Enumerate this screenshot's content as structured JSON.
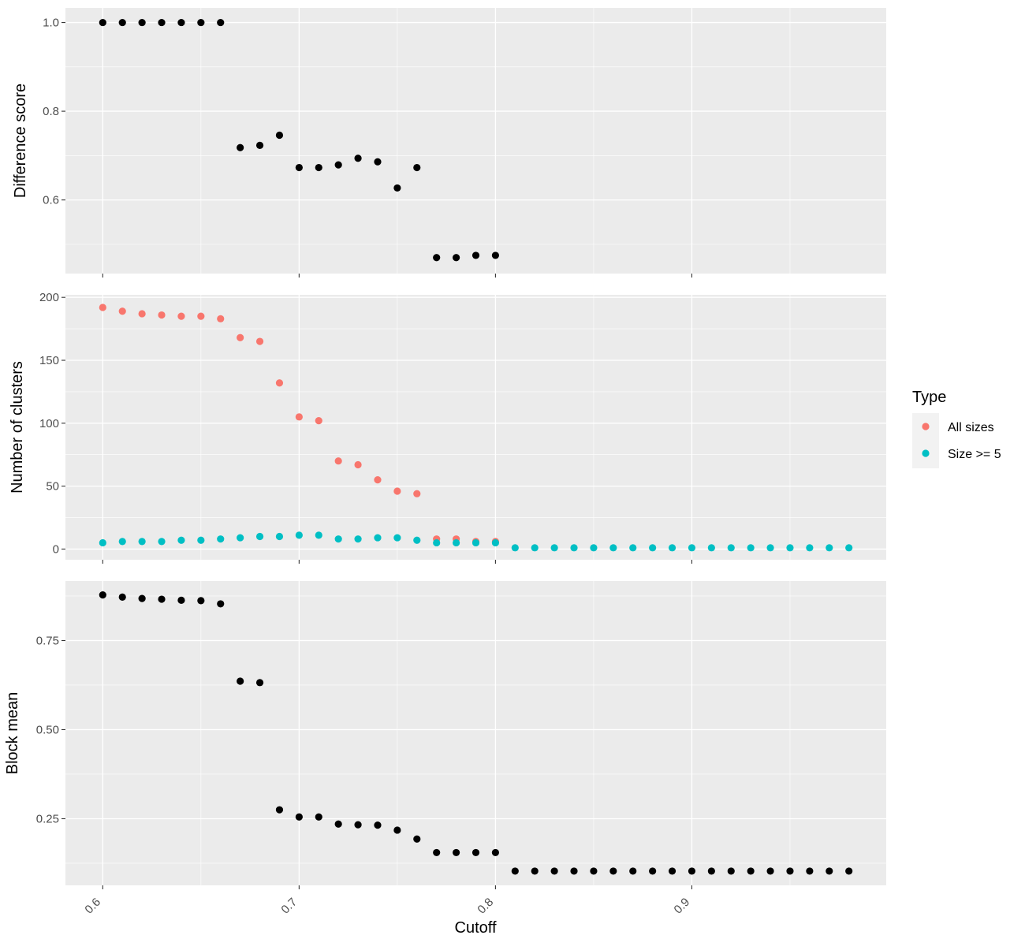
{
  "chart_data": [
    {
      "type": "scatter",
      "panel": "top",
      "ylabel": "Difference score",
      "xlabel": "",
      "xlim": [
        0.581,
        0.999
      ],
      "ylim": [
        0.434,
        1.033
      ],
      "y_ticks": [
        0.6,
        0.8,
        1.0
      ],
      "y_tick_labels": [
        "0.6",
        "0.8",
        "1.0"
      ],
      "x_ticks": [
        0.6,
        0.7,
        0.8,
        0.9
      ],
      "grid": true,
      "series": [
        {
          "color": "#000000",
          "x": [
            0.6,
            0.61,
            0.62,
            0.63,
            0.64,
            0.65,
            0.66,
            0.67,
            0.68,
            0.69,
            0.7,
            0.71,
            0.72,
            0.73,
            0.74,
            0.75,
            0.76,
            0.77,
            0.78,
            0.79,
            0.8
          ],
          "y": [
            1.0,
            1.0,
            1.0,
            1.0,
            1.0,
            1.0,
            1.0,
            0.718,
            0.723,
            0.746,
            0.673,
            0.673,
            0.679,
            0.694,
            0.686,
            0.627,
            0.673,
            0.47,
            0.47,
            0.475,
            0.475
          ]
        }
      ]
    },
    {
      "type": "scatter",
      "panel": "middle",
      "ylabel": "Number of clusters",
      "xlabel": "",
      "xlim": [
        0.581,
        0.999
      ],
      "ylim": [
        -8.5,
        202
      ],
      "y_ticks": [
        0,
        50,
        100,
        150,
        200
      ],
      "y_tick_labels": [
        "0",
        "50",
        "100",
        "150",
        "200"
      ],
      "x_ticks": [
        0.6,
        0.7,
        0.8,
        0.9
      ],
      "grid": true,
      "series": [
        {
          "name": "All sizes",
          "color": "#F8766D",
          "x": [
            0.6,
            0.61,
            0.62,
            0.63,
            0.64,
            0.65,
            0.66,
            0.67,
            0.68,
            0.69,
            0.7,
            0.71,
            0.72,
            0.73,
            0.74,
            0.75,
            0.76,
            0.77,
            0.78,
            0.79,
            0.8
          ],
          "y": [
            192,
            189,
            187,
            186,
            185,
            185,
            183,
            168,
            165,
            132,
            105,
            102,
            70,
            67,
            55,
            46,
            44,
            8,
            8,
            6,
            6
          ]
        },
        {
          "name": "Size >= 5",
          "color": "#00BFC4",
          "x": [
            0.6,
            0.61,
            0.62,
            0.63,
            0.64,
            0.65,
            0.66,
            0.67,
            0.68,
            0.69,
            0.7,
            0.71,
            0.72,
            0.73,
            0.74,
            0.75,
            0.76,
            0.77,
            0.78,
            0.79,
            0.8,
            0.81,
            0.82,
            0.83,
            0.84,
            0.85,
            0.86,
            0.87,
            0.88,
            0.89,
            0.9,
            0.91,
            0.92,
            0.93,
            0.94,
            0.95,
            0.96,
            0.97,
            0.98
          ],
          "y": [
            5,
            6,
            6,
            6,
            7,
            7,
            8,
            9,
            10,
            10,
            11,
            11,
            8,
            8,
            9,
            9,
            7,
            5,
            5,
            5,
            5,
            1,
            1,
            1,
            1,
            1,
            1,
            1,
            1,
            1,
            1,
            1,
            1,
            1,
            1,
            1,
            1,
            1,
            1
          ]
        }
      ]
    },
    {
      "type": "scatter",
      "panel": "bottom",
      "ylabel": "Block mean",
      "xlabel": "Cutoff",
      "xlim": [
        0.581,
        0.999
      ],
      "ylim": [
        0.063,
        0.917
      ],
      "y_ticks": [
        0.25,
        0.5,
        0.75
      ],
      "y_tick_labels": [
        "0.25",
        "0.50",
        "0.75"
      ],
      "x_ticks": [
        0.6,
        0.7,
        0.8,
        0.9
      ],
      "x_tick_labels": [
        "0.6",
        "0.7",
        "0.8",
        "0.9"
      ],
      "grid": true,
      "series": [
        {
          "color": "#000000",
          "x": [
            0.6,
            0.61,
            0.62,
            0.63,
            0.64,
            0.65,
            0.66,
            0.67,
            0.68,
            0.69,
            0.7,
            0.71,
            0.72,
            0.73,
            0.74,
            0.75,
            0.76,
            0.77,
            0.78,
            0.79,
            0.8,
            0.81,
            0.82,
            0.83,
            0.84,
            0.85,
            0.86,
            0.87,
            0.88,
            0.89,
            0.9,
            0.91,
            0.92,
            0.93,
            0.94,
            0.95,
            0.96,
            0.97,
            0.98
          ],
          "y": [
            0.878,
            0.872,
            0.868,
            0.866,
            0.863,
            0.862,
            0.853,
            0.636,
            0.632,
            0.275,
            0.255,
            0.255,
            0.235,
            0.233,
            0.232,
            0.218,
            0.193,
            0.155,
            0.155,
            0.155,
            0.155,
            0.103,
            0.103,
            0.103,
            0.103,
            0.103,
            0.103,
            0.103,
            0.103,
            0.103,
            0.103,
            0.103,
            0.103,
            0.103,
            0.103,
            0.103,
            0.103,
            0.103,
            0.103
          ]
        }
      ]
    }
  ],
  "legend": {
    "title": "Type",
    "placement": "right",
    "items": [
      {
        "label": "All sizes",
        "color": "#F8766D"
      },
      {
        "label": "Size >= 5",
        "color": "#00BFC4"
      }
    ]
  },
  "colors": {
    "panel_background": "#EBEBEB",
    "grid_major": "#FFFFFF",
    "axis_text": "#4D4D4D"
  }
}
